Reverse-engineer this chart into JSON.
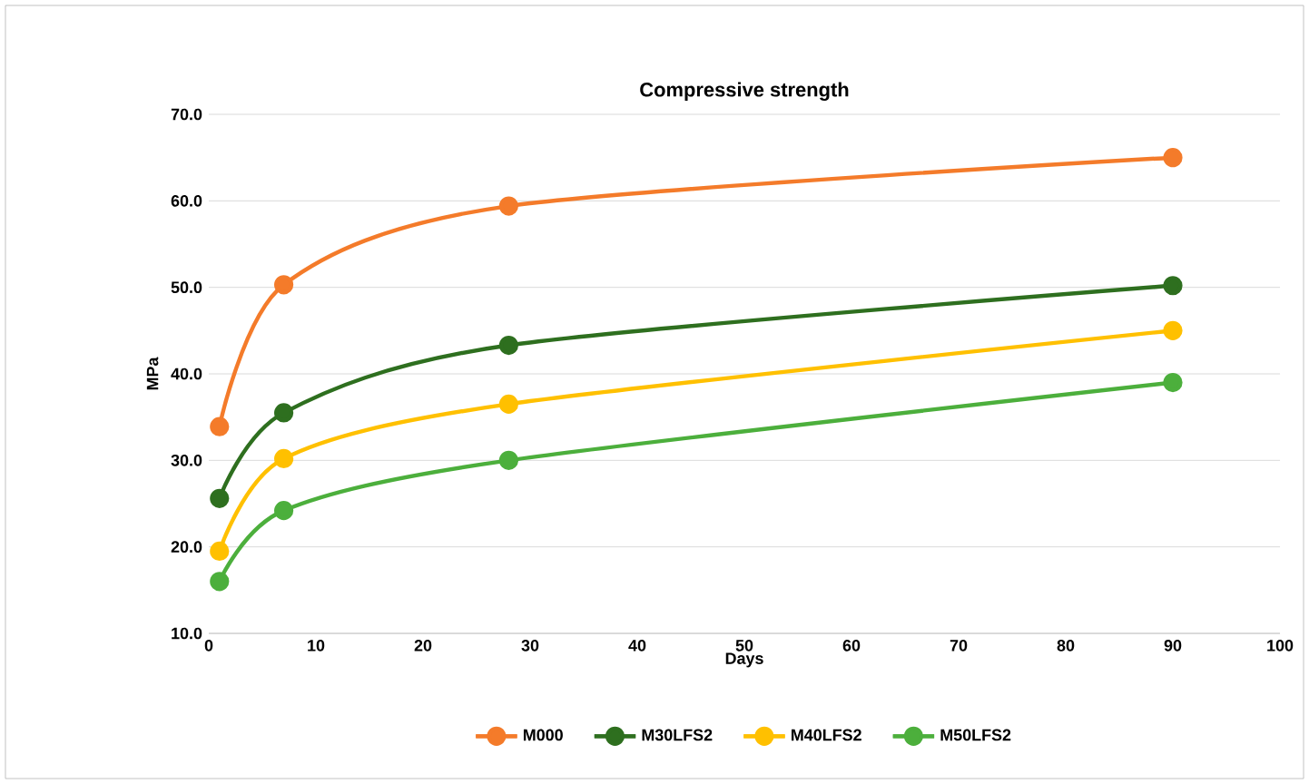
{
  "chart_data": {
    "type": "line",
    "title": "Compressive strength",
    "xlabel": "Days",
    "ylabel": "MPa",
    "x": [
      1,
      7,
      28,
      90
    ],
    "series": [
      {
        "name": "M000",
        "color": "#f47b2a",
        "values": [
          33.9,
          50.3,
          59.4,
          65.0
        ]
      },
      {
        "name": "M30LFS2",
        "color": "#2e6f1f",
        "values": [
          25.6,
          35.5,
          43.3,
          50.2
        ]
      },
      {
        "name": "M40LFS2",
        "color": "#ffc000",
        "values": [
          19.5,
          30.2,
          36.5,
          45.0
        ]
      },
      {
        "name": "M50LFS2",
        "color": "#4caf3c",
        "values": [
          16.0,
          24.2,
          30.0,
          39.0
        ]
      }
    ],
    "xlim": [
      0,
      100
    ],
    "xticks": [
      0,
      10,
      20,
      30,
      40,
      50,
      60,
      70,
      80,
      90,
      100
    ],
    "ylim": [
      10,
      70
    ],
    "yticks": [
      {
        "value": 10,
        "label": "10.0"
      },
      {
        "value": 20,
        "label": "20.0"
      },
      {
        "value": 30,
        "label": "30.0"
      },
      {
        "value": 40,
        "label": "40.0"
      },
      {
        "value": 50,
        "label": "50.0"
      },
      {
        "value": 60,
        "label": "60.0"
      },
      {
        "value": 70,
        "label": "70.0"
      }
    ],
    "grid": "y",
    "legend": "bottom",
    "marker": "circle",
    "line_style": "solid"
  }
}
